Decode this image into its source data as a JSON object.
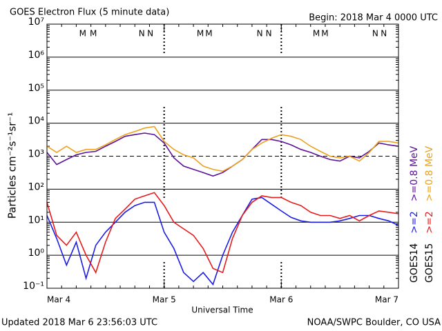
{
  "chart_data": {
    "type": "line",
    "title": "GOES Electron Flux (5 minute data)",
    "begin": "Begin: 2018 Mar 4 0000 UTC",
    "xlabel": "Universal Time",
    "ylabel": "Particles cm⁻²s⁻¹sr⁻¹",
    "updated": "Updated 2018 Mar  6 23:56:03 UTC",
    "credit": "NOAA/SWPC Boulder, CO USA",
    "log_y": true,
    "grid": true,
    "threshold": 1000,
    "xlim": [
      "2018-03-04T00:00",
      "2018-03-07T00:00"
    ],
    "xticks": [
      {
        "value": "2018-03-04T00:00",
        "label": "Mar 4"
      },
      {
        "value": "2018-03-05T00:00",
        "label": "Mar 5"
      },
      {
        "value": "2018-03-06T00:00",
        "label": "Mar 6"
      },
      {
        "value": "2018-03-07T00:00",
        "label": "Mar 7"
      }
    ],
    "ylim": [
      0.1,
      10000000
    ],
    "yticks": [
      {
        "value": 0.1,
        "label": "10⁻¹"
      },
      {
        "value": 1,
        "label": "10⁰"
      },
      {
        "value": 10,
        "label": "10¹"
      },
      {
        "value": 100,
        "label": "10²"
      },
      {
        "value": 1000,
        "label": "10³"
      },
      {
        "value": 10000,
        "label": "10⁴"
      },
      {
        "value": 100000,
        "label": "10⁵"
      },
      {
        "value": 1000000,
        "label": "10⁶"
      },
      {
        "value": 10000000,
        "label": "10⁷"
      }
    ],
    "annotations": [
      {
        "text": "M",
        "color": "#1a1ae6",
        "x": "2018-03-04T07:20"
      },
      {
        "text": "M",
        "color": "#e61a1a",
        "x": "2018-03-04T09:30"
      },
      {
        "text": "N",
        "color": "#1a1ae6",
        "x": "2018-03-04T19:25"
      },
      {
        "text": "N",
        "color": "#e61a1a",
        "x": "2018-03-04T21:10"
      },
      {
        "text": "M",
        "color": "#1a1ae6",
        "x": "2018-03-05T07:25"
      },
      {
        "text": "M",
        "color": "#e61a1a",
        "x": "2018-03-05T09:10"
      },
      {
        "text": "N",
        "color": "#1a1ae6",
        "x": "2018-03-05T19:35"
      },
      {
        "text": "N",
        "color": "#e61a1a",
        "x": "2018-03-05T21:25"
      },
      {
        "text": "M",
        "color": "#1a1ae6",
        "x": "2018-03-06T07:10"
      },
      {
        "text": "M",
        "color": "#e61a1a",
        "x": "2018-03-06T08:55"
      },
      {
        "text": "N",
        "color": "#1a1ae6",
        "x": "2018-03-06T19:15"
      },
      {
        "text": "N",
        "color": "#e61a1a",
        "x": "2018-03-06T21:00"
      }
    ],
    "x": [
      "2018-03-04T00:00",
      "2018-03-04T02:00",
      "2018-03-04T04:00",
      "2018-03-04T06:00",
      "2018-03-04T08:00",
      "2018-03-04T10:00",
      "2018-03-04T12:00",
      "2018-03-04T14:00",
      "2018-03-04T16:00",
      "2018-03-04T18:00",
      "2018-03-04T20:00",
      "2018-03-04T22:00",
      "2018-03-05T00:00",
      "2018-03-05T02:00",
      "2018-03-05T04:00",
      "2018-03-05T06:00",
      "2018-03-05T08:00",
      "2018-03-05T10:00",
      "2018-03-05T12:00",
      "2018-03-05T14:00",
      "2018-03-05T16:00",
      "2018-03-05T18:00",
      "2018-03-05T20:00",
      "2018-03-05T22:00",
      "2018-03-06T00:00",
      "2018-03-06T02:00",
      "2018-03-06T04:00",
      "2018-03-06T06:00",
      "2018-03-06T08:00",
      "2018-03-06T10:00",
      "2018-03-06T12:00",
      "2018-03-06T14:00",
      "2018-03-06T16:00",
      "2018-03-06T18:00",
      "2018-03-06T20:00",
      "2018-03-06T22:00",
      "2018-03-07T00:00"
    ],
    "groups": [
      {
        "name": "GOES14",
        "series": [
          {
            "name": ">=2",
            "color": "#1a1ae6",
            "values": [
              16,
              3.2,
              0.5,
              2.5,
              0.2,
              2,
              5,
              10,
              20,
              32,
              40,
              40,
              5,
              1.6,
              0.3,
              0.16,
              0.3,
              0.13,
              1,
              5,
              16,
              50,
              56,
              35,
              22,
              14,
              11,
              10,
              10,
              10,
              11,
              13,
              16,
              16,
              13,
              11,
              8
            ]
          },
          {
            "name": ">=0.8 MeV",
            "color": "#5c0f99",
            "values": [
              1300,
              560,
              790,
              1100,
              1300,
              1400,
              2000,
              2800,
              4000,
              4500,
              5000,
              4500,
              2500,
              890,
              500,
              400,
              320,
              250,
              320,
              500,
              790,
              1600,
              3200,
              3200,
              2800,
              2200,
              1600,
              1300,
              1000,
              790,
              710,
              1000,
              890,
              1400,
              2500,
              2200,
              2000
            ]
          }
        ]
      },
      {
        "name": "GOES15",
        "series": [
          {
            "name": ">=2",
            "color": "#e61a1a",
            "values": [
              40,
              4,
              2,
              5,
              1,
              0.3,
              2.5,
              13,
              25,
              50,
              63,
              79,
              32,
              10,
              6.3,
              4,
              1.6,
              0.4,
              0.3,
              3.2,
              16,
              40,
              63,
              56,
              56,
              40,
              32,
              20,
              16,
              16,
              13,
              16,
              11,
              16,
              22,
              20,
              18
            ]
          },
          {
            "name": ">=0.8 MeV",
            "color": "#eba21c",
            "values": [
              2000,
              1300,
              2000,
              1300,
              1600,
              1600,
              2200,
              3200,
              4500,
              5600,
              7100,
              7900,
              2800,
              1600,
              1100,
              890,
              500,
              400,
              350,
              500,
              790,
              1600,
              2500,
              3500,
              4500,
              4000,
              3200,
              2000,
              1400,
              1000,
              890,
              1000,
              710,
              1300,
              2800,
              2800,
              2500
            ]
          }
        ]
      }
    ]
  }
}
